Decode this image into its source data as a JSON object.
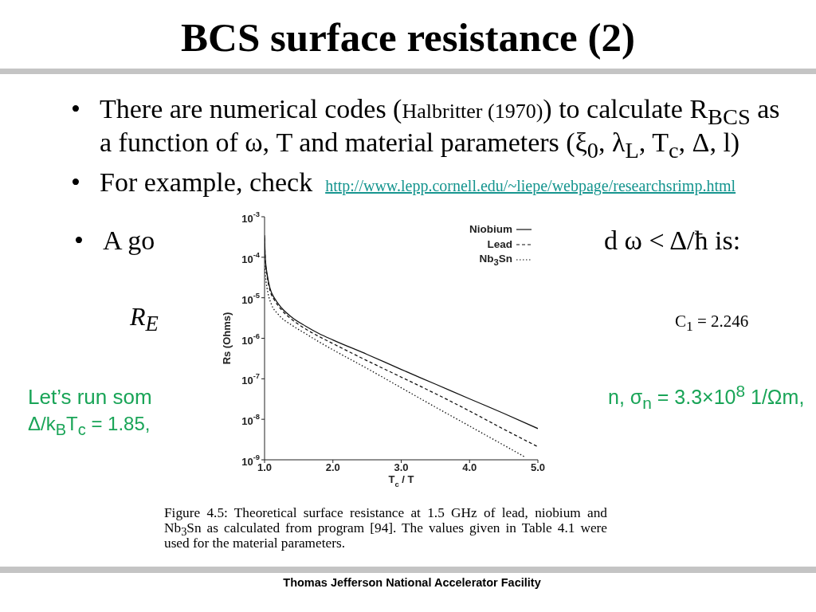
{
  "chart_data": {
    "type": "line",
    "title": "BCS surface resistance (2)",
    "xlabel": "T$_{c}$ / T",
    "ylabel": "Rs (Ohms)",
    "x": [
      1.0,
      1.01,
      1.04,
      1.08,
      1.15,
      1.25,
      1.4,
      1.6,
      1.8,
      2.0,
      2.5,
      3.0,
      3.5,
      4.0,
      4.5,
      5.0
    ],
    "series": [
      {
        "name": "Niobium",
        "color": "#111111",
        "line_style": "solid",
        "values": [
          0.00035,
          0.0001,
          3.6e-05,
          1.7e-05,
          9.5e-06,
          5.6e-06,
          3.3e-06,
          2e-06,
          1.3e-06,
          9.1e-07,
          4e-07,
          1.7e-07,
          7.4e-08,
          3.2e-08,
          1.4e-08,
          5.9e-09
        ]
      },
      {
        "name": "Lead",
        "color": "#111111",
        "line_style": "dashed",
        "values": [
          0.0003,
          9e-05,
          3.2e-05,
          1.5e-05,
          8.5e-06,
          5e-06,
          2.9e-06,
          1.7e-06,
          1.1e-06,
          7.4e-07,
          2.8e-07,
          1.1e-07,
          4.3e-08,
          1.6e-08,
          5.7e-09,
          2.1e-09
        ]
      },
      {
        "name": "Nb$_{3}$Sn",
        "color": "#111111",
        "line_style": "dotted",
        "x": [
          1.0,
          1.02,
          1.05,
          1.1,
          1.2,
          1.4,
          1.6,
          1.8,
          2.0,
          2.5,
          3.0,
          3.5,
          4.0,
          4.5,
          4.8
        ],
        "values": [
          6.2e-05,
          2.7e-05,
          1.3e-05,
          6.9e-06,
          3.9e-06,
          2.1e-06,
          1.3e-06,
          8.1e-07,
          5.2e-07,
          1.8e-07,
          6e-08,
          2e-08,
          6.8e-09,
          2.3e-09,
          1.2e-09
        ]
      }
    ],
    "xlim": [
      1.0,
      5.0
    ],
    "xticks": [
      {
        "value": 1,
        "label": "1.0"
      },
      {
        "value": 2,
        "label": "2.0"
      },
      {
        "value": 3,
        "label": "3.0"
      },
      {
        "value": 4,
        "label": "4.0"
      },
      {
        "value": 5,
        "label": "5.0"
      }
    ],
    "ylim": [
      1e-09,
      0.001
    ],
    "yticks": [
      {
        "value": 1e-09,
        "label": "10$^{-9}$"
      },
      {
        "value": 1e-08,
        "label": "10$^{-8}$"
      },
      {
        "value": 1e-07,
        "label": "10$^{-7}$"
      },
      {
        "value": 1e-06,
        "label": "10$^{-6}$"
      },
      {
        "value": 1e-05,
        "label": "10$^{-5}$"
      },
      {
        "value": 0.0001,
        "label": "10$^{-4}$"
      },
      {
        "value": 0.001,
        "label": "10$^{-3}$"
      }
    ],
    "log": "y",
    "legend": "top right",
    "annotations": [
      "•",
      "There are numerical codes (",
      "Halbritter (1970)",
      ") to calculate R$_{BCS}$ as",
      "a function of ω, T and material parameters (ξ$_{0}$, λ$_{L}$, T$_{c}$, Δ, l)",
      "•",
      "For example, check",
      "http://www.lepp.cornell.edu/~liepe/webpage/researchsrimp.html",
      "•",
      "A go",
      "d ω < Δ/ħ is:",
      "R$_{E}$",
      "C$_{1}$ = 2.246",
      "Let’s run som",
      "n, σ$_{n}$ = 3.3×10$^{8}$ 1/Ωm,",
      "Δ/k$_{B}$T$_{c}$ = 1.85,",
      "Figure 4.5: Theoretical surface resistance at 1.5 GHz of lead, niobium and Nb$_{3}$Sn as calculated from program [94]. The values given in Table 4.1 were used for the material parameters.",
      "Thomas Jefferson National Accelerator Facility"
    ]
  }
}
